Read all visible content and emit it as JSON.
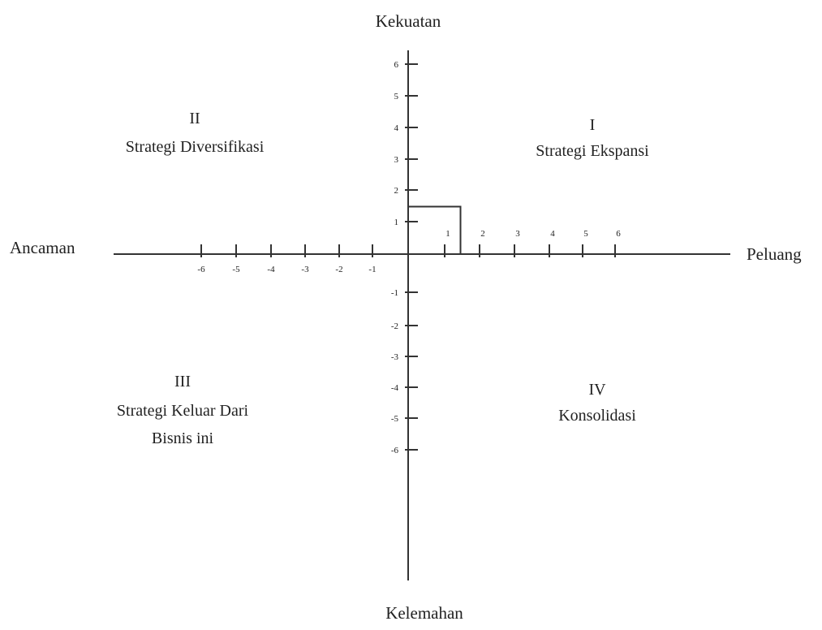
{
  "axes": {
    "top": "Kekuatan",
    "bottom": "Kelemahan",
    "left": "Ancaman",
    "right": "Peluang"
  },
  "quadrants": [
    {
      "id": "I",
      "numeral": "I",
      "lines": [
        "Strategi Ekspansi"
      ]
    },
    {
      "id": "II",
      "numeral": "II",
      "lines": [
        "Strategi Diversifikasi"
      ]
    },
    {
      "id": "III",
      "numeral": "III",
      "lines": [
        "Strategi Keluar Dari",
        "Bisnis ini"
      ]
    },
    {
      "id": "IV",
      "numeral": "IV",
      "lines": [
        "Konsolidasi"
      ]
    }
  ],
  "ticks": {
    "x_positive": [
      "1",
      "2",
      "3",
      "4",
      "5",
      "6"
    ],
    "x_negative": [
      "-6",
      "-5",
      "-4",
      "-3",
      "-2",
      "-1"
    ],
    "y_positive": [
      "6",
      "5",
      "4",
      "3",
      "2",
      "1"
    ],
    "y_negative": [
      "-1",
      "-2",
      "-3",
      "-4",
      "-5",
      "-6"
    ]
  },
  "position_box": {
    "x": 1.5,
    "y": 1.5
  }
}
